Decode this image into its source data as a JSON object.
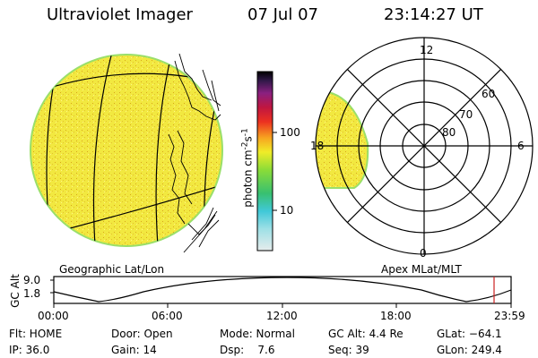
{
  "header": {
    "title": "Ultraviolet Imager",
    "date": "07 Jul 07",
    "time": "23:14:27 UT"
  },
  "colorbar": {
    "unit_label": "photon cm",
    "unit_exp1": "-2",
    "unit_s": "s",
    "unit_exp2": "-1",
    "tick_high": "100",
    "tick_low": "10"
  },
  "left_panel": {
    "caption": "Geographic Lat/Lon"
  },
  "right_panel": {
    "caption": "Apex MLat/MLT",
    "mlt_labels": {
      "top": "12",
      "left": "18",
      "right": "6",
      "bottom": "0"
    },
    "lat_labels": [
      "60",
      "70",
      "80"
    ]
  },
  "altitude_strip": {
    "axis_label": "GC Alt",
    "y_high": "9.0",
    "y_low": "1.8",
    "x_ticks": [
      "00:00",
      "06:00",
      "12:00",
      "18:00",
      "23:59"
    ]
  },
  "info": {
    "flt": "Flt: HOME",
    "ip": "IP: 36.0",
    "door": "Door: Open",
    "gain": "Gain: 14",
    "mode": "Mode: Normal",
    "dsp": "Dsp:    7.6",
    "gc_alt": "GC Alt: 4.4 Re",
    "seq": "Seq: 39",
    "glat": "GLat: −64.1",
    "glon": "GLon: 249.4"
  },
  "colors": {
    "aurora_fill": "#f2e840",
    "aurora_edge": "#9adf6a",
    "cursor_red": "#cc2222"
  }
}
